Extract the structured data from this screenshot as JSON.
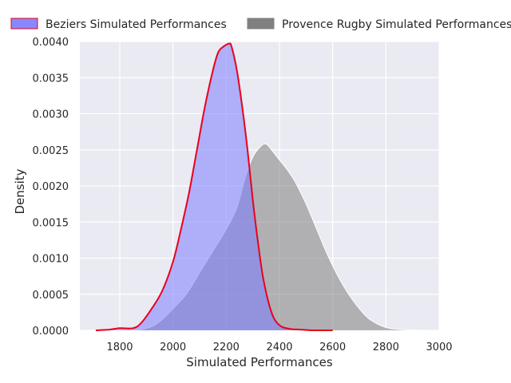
{
  "chart_data": {
    "type": "area",
    "xlabel": "Simulated Performances",
    "ylabel": "Density",
    "xlim": [
      1650,
      3000
    ],
    "ylim": [
      0,
      0.004
    ],
    "x_ticks": [
      1800,
      2000,
      2200,
      2400,
      2600,
      2800,
      3000
    ],
    "x_tick_labels": [
      "1800",
      "2000",
      "2200",
      "2400",
      "2600",
      "2800",
      "3000"
    ],
    "y_ticks": [
      0,
      0.0005,
      0.001,
      0.0015,
      0.002,
      0.0025,
      0.003,
      0.0035,
      0.004
    ],
    "y_tick_labels": [
      "0.0000",
      "0.0005",
      "0.0010",
      "0.0015",
      "0.0020",
      "0.0025",
      "0.0030",
      "0.0035",
      "0.0040"
    ],
    "grid": true,
    "legend_position": "top",
    "series": [
      {
        "name": "Beziers Simulated Performances",
        "fill_color": "#7b7bff",
        "line_color": "#e8001c",
        "x": [
          1710,
          1760,
          1800,
          1850,
          1880,
          1920,
          1960,
          2000,
          2030,
          2060,
          2090,
          2120,
          2150,
          2170,
          2190,
          2210,
          2220,
          2240,
          2260,
          2280,
          2300,
          2320,
          2340,
          2370,
          2400,
          2440,
          2480,
          2520,
          2560,
          2600
        ],
        "y": [
          0.0,
          1e-05,
          3e-05,
          3e-05,
          0.0001,
          0.0003,
          0.00055,
          0.00095,
          0.0014,
          0.0019,
          0.0025,
          0.0031,
          0.0036,
          0.00385,
          0.00393,
          0.00397,
          0.00393,
          0.0036,
          0.0031,
          0.0025,
          0.0018,
          0.0012,
          0.0007,
          0.00025,
          7e-05,
          2e-05,
          1e-05,
          0.0,
          0.0,
          0.0
        ]
      },
      {
        "name": "Provence Rugby Simulated Performances",
        "fill_color": "#808080",
        "line_color": "#ffffff",
        "x": [
          1870,
          1920,
          1960,
          2000,
          2050,
          2100,
          2150,
          2200,
          2240,
          2270,
          2300,
          2330,
          2350,
          2370,
          2400,
          2430,
          2460,
          2500,
          2540,
          2580,
          2620,
          2660,
          2700,
          2740,
          2800,
          2860,
          2940
        ],
        "y": [
          0.0,
          5e-05,
          0.00015,
          0.0003,
          0.0005,
          0.0008,
          0.0011,
          0.0014,
          0.0017,
          0.0021,
          0.0024,
          0.00255,
          0.00258,
          0.0025,
          0.00236,
          0.00222,
          0.00205,
          0.00175,
          0.0014,
          0.00105,
          0.00075,
          0.0005,
          0.0003,
          0.00015,
          4e-05,
          1e-05,
          0.0
        ]
      }
    ]
  }
}
